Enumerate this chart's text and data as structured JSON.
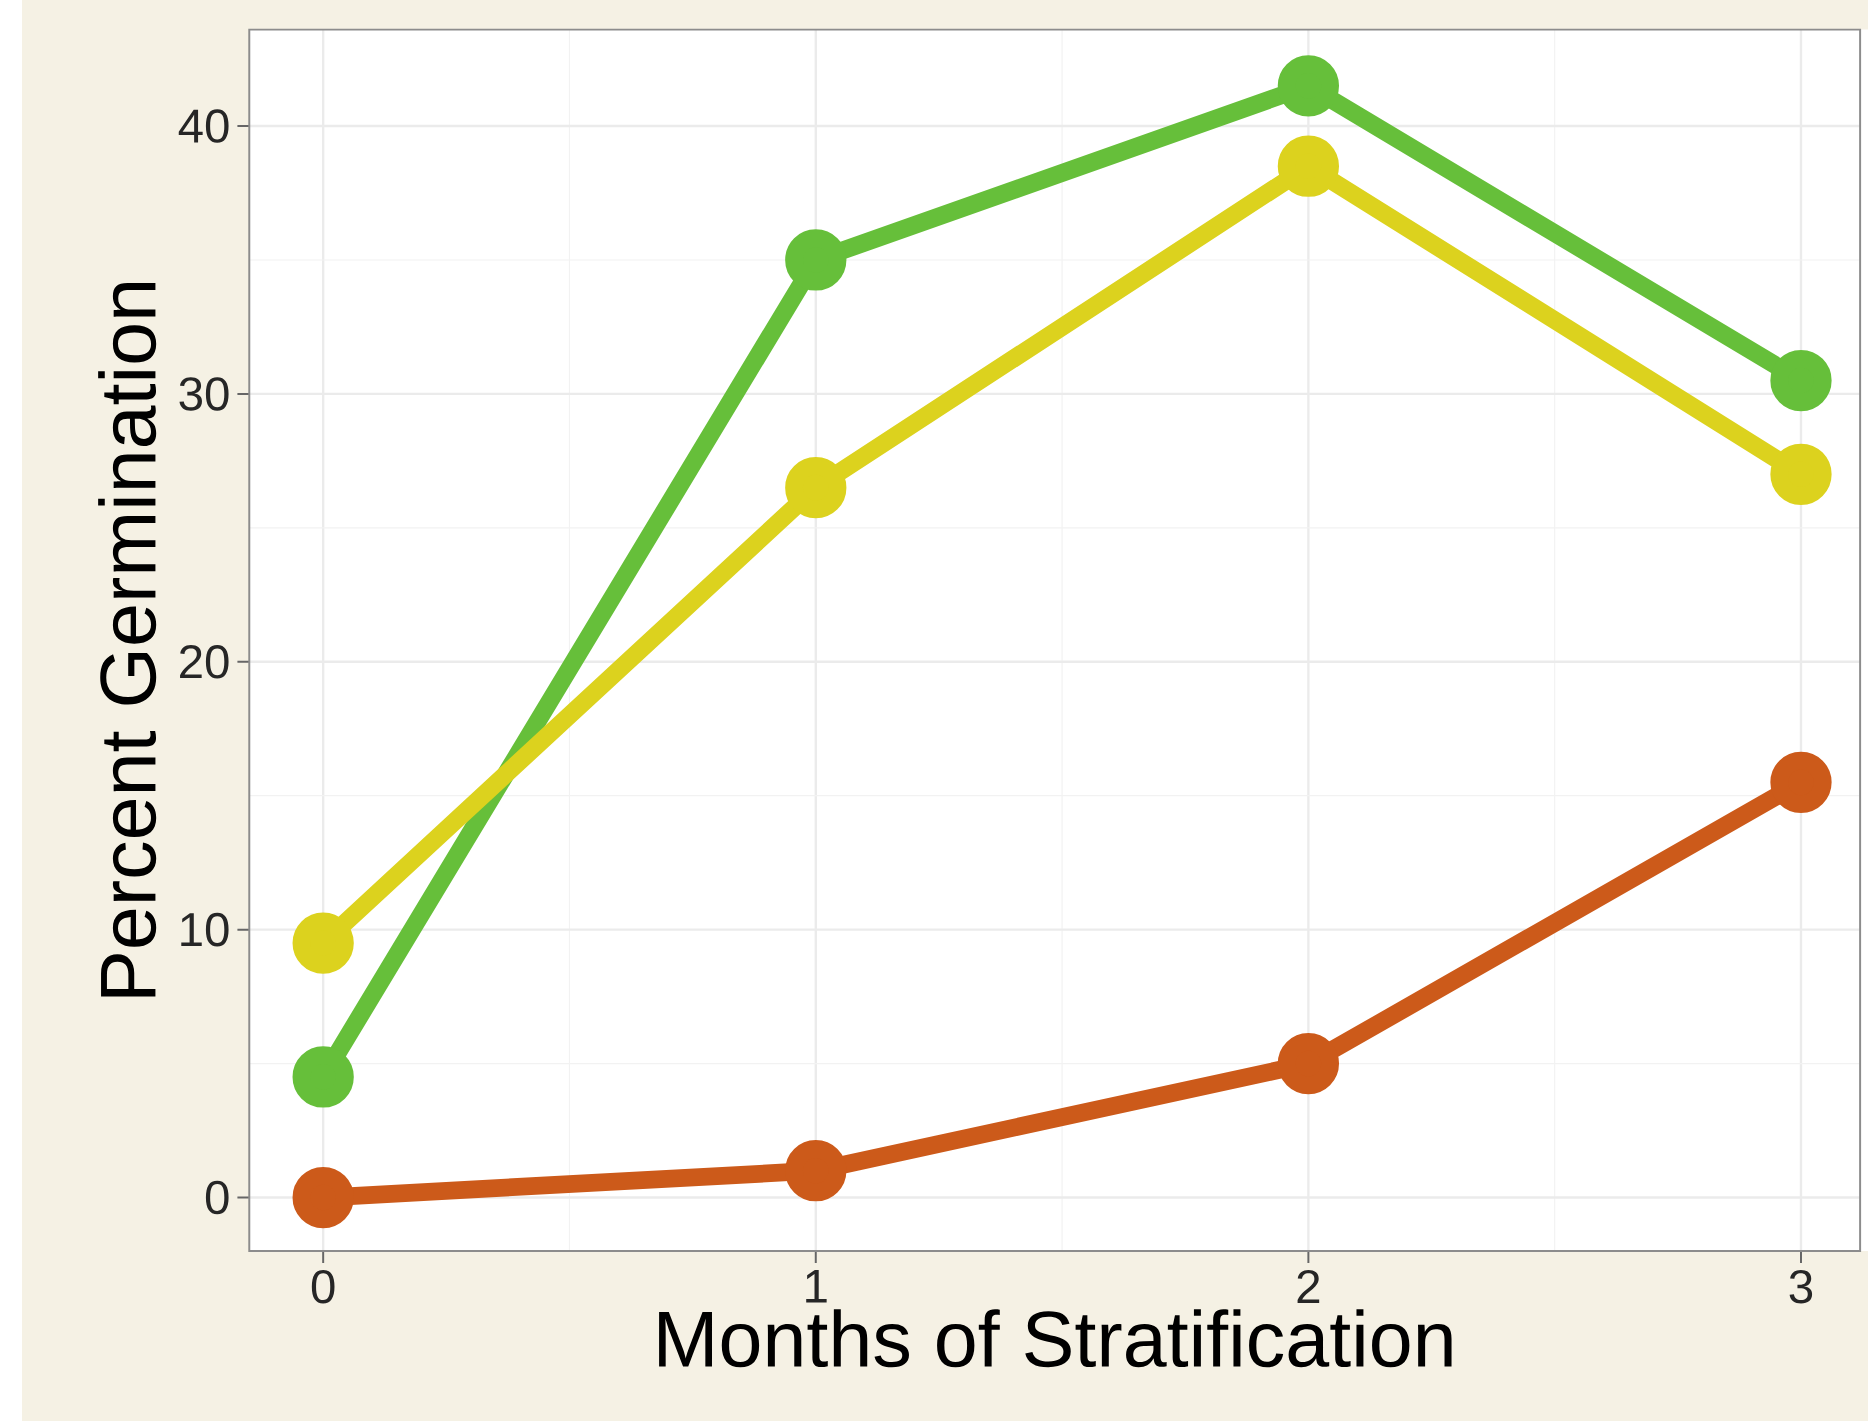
{
  "chart_data": {
    "type": "line",
    "xlabel": "Months of Stratification",
    "ylabel": "Percent Germination",
    "x": [
      0,
      1,
      2,
      3
    ],
    "series": [
      {
        "color": "#66bf3a",
        "values": [
          4.5,
          35,
          41.5,
          30.5
        ]
      },
      {
        "color": "#dcd21e",
        "values": [
          9.5,
          26.5,
          38.5,
          27
        ]
      },
      {
        "color": "#cc5a1a",
        "values": [
          0,
          1,
          5,
          15.5
        ]
      }
    ],
    "xlim": [
      -0.15,
      3.12
    ],
    "ylim": [
      -2,
      43.6
    ],
    "xticks": [
      0,
      1,
      2,
      3
    ],
    "yticks": [
      0,
      10,
      20,
      30,
      40
    ],
    "grid": true,
    "marker": "circle",
    "line_style": "solid"
  }
}
